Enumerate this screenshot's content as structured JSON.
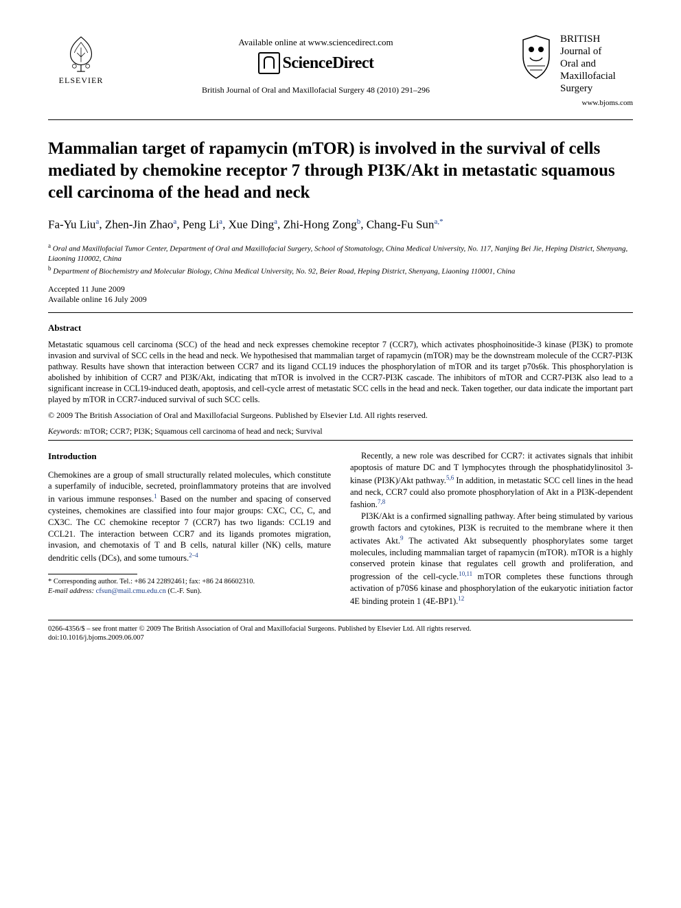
{
  "header": {
    "publisher_name": "ELSEVIER",
    "available_text": "Available online at www.sciencedirect.com",
    "sd_logo_text": "ScienceDirect",
    "citation": "British Journal of Oral and Maxillofacial Surgery 48 (2010) 291–296",
    "journal_title_1": "BRITISH",
    "journal_title_2": "Journal of",
    "journal_title_3": "Oral and",
    "journal_title_4": "Maxillofacial",
    "journal_title_5": "Surgery",
    "journal_url": "www.bjoms.com"
  },
  "article": {
    "title": "Mammalian target of rapamycin (mTOR) is involved in the survival of cells mediated by chemokine receptor 7 through PI3K/Akt in metastatic squamous cell carcinoma of the head and neck",
    "authors_html": "Fa-Yu Liu<sup>a</sup>, Zhen-Jin Zhao<sup>a</sup>, Peng Li<sup>a</sup>, Xue Ding<sup>a</sup>, Zhi-Hong Zong<sup>b</sup>, Chang-Fu Sun<sup>a,*</sup>",
    "affiliation_a": "Oral and Maxillofacial Tumor Center, Department of Oral and Maxillofacial Surgery, School of Stomatology, China Medical University, No. 117, Nanjing Bei Jie, Heping District, Shenyang, Liaoning 110002, China",
    "affiliation_b": "Department of Biochemistry and Molecular Biology, China Medical University, No. 92, Beier Road, Heping District, Shenyang, Liaoning 110001, China",
    "accepted": "Accepted 11 June 2009",
    "online": "Available online 16 July 2009"
  },
  "abstract": {
    "heading": "Abstract",
    "body": "Metastatic squamous cell carcinoma (SCC) of the head and neck expresses chemokine receptor 7 (CCR7), which activates phosphoinositide-3 kinase (PI3K) to promote invasion and survival of SCC cells in the head and neck. We hypothesised that mammalian target of rapamycin (mTOR) may be the downstream molecule of the CCR7-PI3K pathway. Results have shown that interaction between CCR7 and its ligand CCL19 induces the phosphorylation of mTOR and its target p70s6k. This phosphorylation is abolished by inhibition of CCR7 and PI3K/Akt, indicating that mTOR is involved in the CCR7-PI3K cascade. The inhibitors of mTOR and CCR7-PI3K also lead to a significant increase in CCL19-induced death, apoptosis, and cell-cycle arrest of metastatic SCC cells in the head and neck. Taken together, our data indicate the important part played by mTOR in CCR7-induced survival of such SCC cells.",
    "copyright": "© 2009 The British Association of Oral and Maxillofacial Surgeons. Published by Elsevier Ltd. All rights reserved.",
    "keywords_label": "Keywords:",
    "keywords": " mTOR; CCR7; PI3K; Squamous cell carcinoma of head and neck; Survival"
  },
  "intro": {
    "heading": "Introduction",
    "col1_p1": "Chemokines are a group of small structurally related molecules, which constitute a superfamily of inducible, secreted, proinflammatory proteins that are involved in various immune responses.",
    "col1_p1_sup": "1",
    "col1_p1b": " Based on the number and spacing of conserved cysteines, chemokines are classified into four major groups: CXC, CC, C, and CX3C. The CC chemokine receptor 7 (CCR7) has two ligands: CCL19 and CCL21. The interaction between CCR7 and its ligands promotes migration, invasion, and chemotaxis of T and B cells, natural killer (NK) cells, mature dendritic cells (DCs), and some tumours.",
    "col1_p1b_sup": "2–4",
    "col2_p1": "Recently, a new role was described for CCR7: it activates signals that inhibit apoptosis of mature DC and T lymphocytes through the phosphatidylinositol 3-kinase (PI3K)/Akt pathway.",
    "col2_p1_sup": "5,6",
    "col2_p1b": " In addition, in metastatic SCC cell lines in the head and neck, CCR7 could also promote phosphorylation of Akt in a PI3K-dependent fashion.",
    "col2_p1b_sup": "7,8",
    "col2_p2": "PI3K/Akt is a confirmed signalling pathway. After being stimulated by various growth factors and cytokines, PI3K is recruited to the membrane where it then activates Akt.",
    "col2_p2_sup": "9",
    "col2_p2b": " The activated Akt subsequently phosphorylates some target molecules, including mammalian target of rapamycin (mTOR). mTOR is a highly conserved protein kinase that regulates cell growth and proliferation, and progression of the cell-cycle.",
    "col2_p2b_sup": "10,11",
    "col2_p2c": " mTOR completes these functions through activation of p70S6 kinase and phosphorylation of the eukaryotic initiation factor 4E binding protein 1 (4E-BP1).",
    "col2_p2c_sup": "12"
  },
  "footnote": {
    "corr": "* Corresponding author. Tel.: +86 24 22892461; fax: +86 24 86602310.",
    "email_label": "E-mail address:",
    "email": "cfsun@mail.cmu.edu.cn",
    "email_name": " (C.-F. Sun)."
  },
  "footer": {
    "line1": "0266-4356/$ – see front matter © 2009 The British Association of Oral and Maxillofacial Surgeons. Published by Elsevier Ltd. All rights reserved.",
    "line2": "doi:10.1016/j.bjoms.2009.06.007"
  },
  "colors": {
    "text": "#000000",
    "link": "#1a3e8c",
    "bg": "#ffffff"
  }
}
